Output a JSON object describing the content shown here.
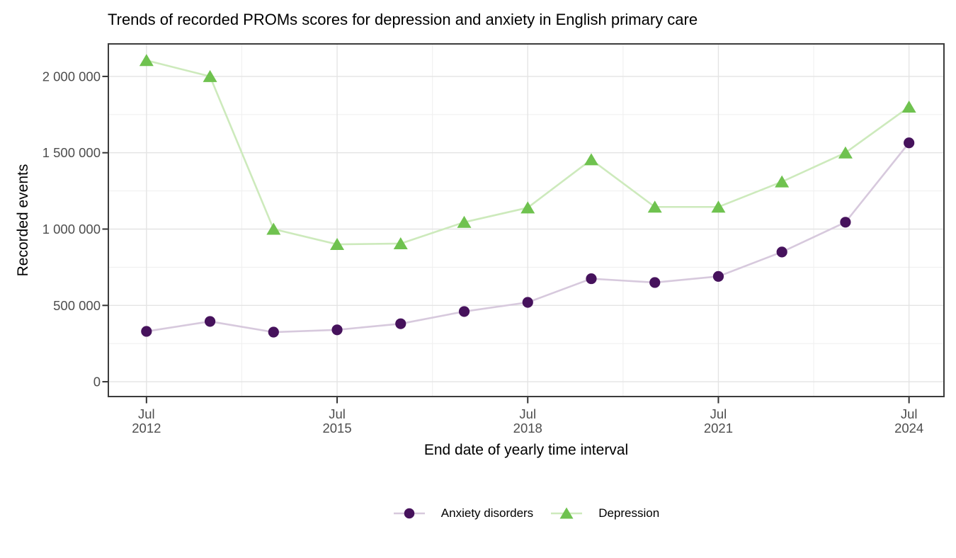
{
  "chart_data": {
    "type": "line",
    "title": "Trends of recorded PROMs scores for depression and anxiety in English primary care",
    "xlabel": "End date of yearly time interval",
    "ylabel": "Recorded events",
    "x_unit": "decimal year (July of each year)",
    "x": [
      2012.5,
      2013.5,
      2014.5,
      2015.5,
      2016.5,
      2017.5,
      2018.5,
      2019.5,
      2020.5,
      2021.5,
      2022.5,
      2023.5,
      2024.5
    ],
    "series": [
      {
        "name": "Anxiety disorders",
        "marker": "circle",
        "marker_color": "#46125c",
        "line_color": "#d7c9dd",
        "values": [
          330000,
          395000,
          325000,
          340000,
          380000,
          460000,
          520000,
          675000,
          650000,
          690000,
          850000,
          1045000,
          1565000
        ]
      },
      {
        "name": "Depression",
        "marker": "triangle",
        "marker_color": "#6fc24f",
        "line_color": "#cdeabc",
        "values": [
          2105000,
          2000000,
          1000000,
          900000,
          905000,
          1045000,
          1140000,
          1455000,
          1145000,
          1145000,
          1310000,
          1500000,
          1800000
        ]
      }
    ],
    "x_ticks": [
      {
        "x": 2012.5,
        "line1": "Jul",
        "line2": "2012"
      },
      {
        "x": 2015.5,
        "line1": "Jul",
        "line2": "2015"
      },
      {
        "x": 2018.5,
        "line1": "Jul",
        "line2": "2018"
      },
      {
        "x": 2021.5,
        "line1": "Jul",
        "line2": "2021"
      },
      {
        "x": 2024.5,
        "line1": "Jul",
        "line2": "2024"
      }
    ],
    "y_ticks": [
      {
        "y": 0,
        "label": "0"
      },
      {
        "y": 500000,
        "label": "500 000"
      },
      {
        "y": 1000000,
        "label": "1 000 000"
      },
      {
        "y": 1500000,
        "label": "1 500 000"
      },
      {
        "y": 2000000,
        "label": "2 000 000"
      }
    ],
    "x_minor": [
      2014.0,
      2017.0,
      2020.0,
      2023.0
    ],
    "y_minor": [
      250000,
      750000,
      1250000,
      1750000
    ],
    "x_range": [
      2011.9,
      2025.05
    ],
    "y_range": [
      -97000,
      2213000
    ],
    "grid": true,
    "legend_position": "bottom",
    "colors": {
      "background": "#ffffff",
      "panel_background": "#ffffff",
      "grid_major": "#e4e4e4",
      "grid_minor": "#f0f0f0",
      "panel_border": "#3c3c3c",
      "tick_mark": "#333333",
      "tick_label": "#4d4d4d",
      "text": "#000000"
    }
  }
}
